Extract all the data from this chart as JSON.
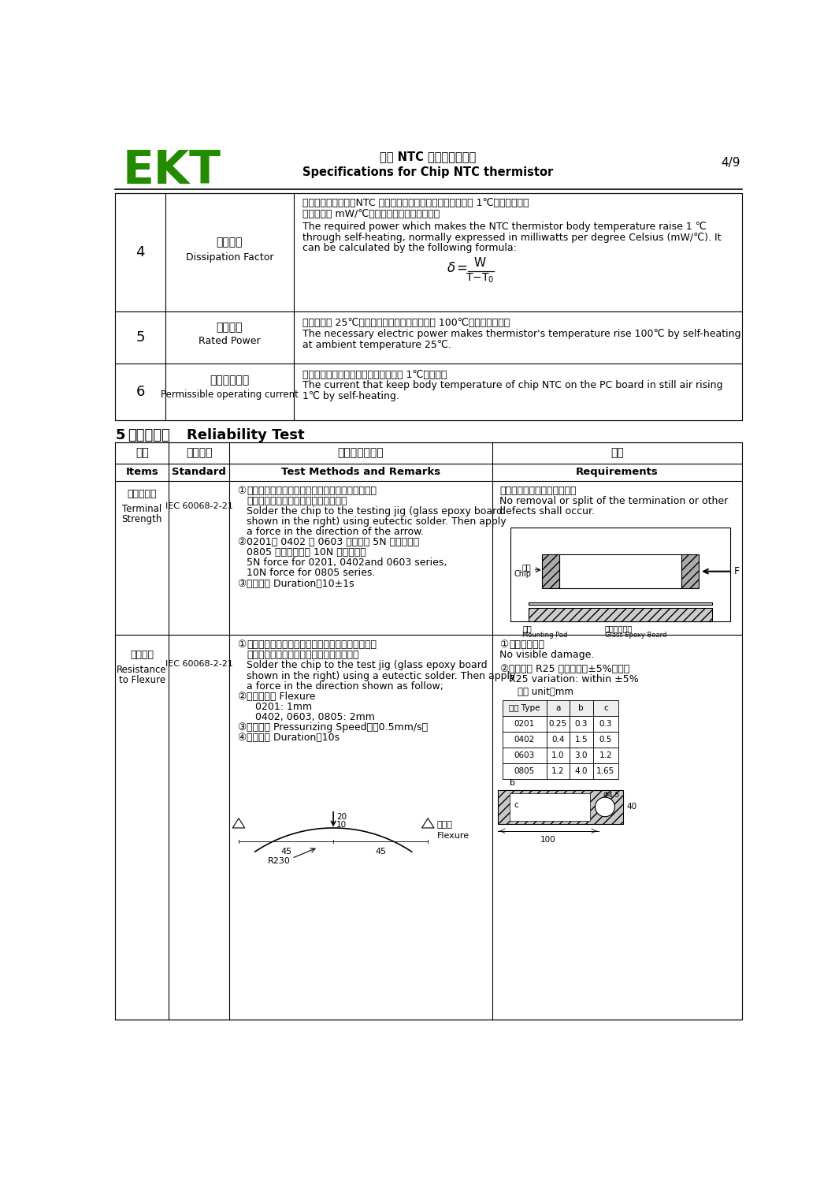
{
  "bg_color": "#ffffff",
  "text_color": "#000000",
  "green_color": "#228B00",
  "header_title_cn": "片式 NTC 热敏电阻规格书",
  "header_title_en": " Specifications for Chip NTC thermistor",
  "page_num": "4/9",
  "ekt_text": "EKT"
}
